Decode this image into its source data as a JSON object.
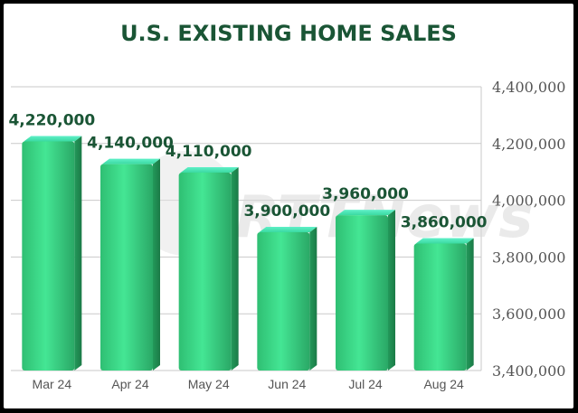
{
  "chart_data": {
    "type": "bar",
    "title": "U.S. EXISTING HOME SALES",
    "categories": [
      "Mar 24",
      "Apr 24",
      "May 24",
      "Jun 24",
      "Jul 24",
      "Aug 24"
    ],
    "values": [
      4220000,
      4140000,
      4110000,
      3900000,
      3960000,
      3860000
    ],
    "data_labels": [
      "4,220,000",
      "4,140,000",
      "4,110,000",
      "3,900,000",
      "3,960,000",
      "3,860,000"
    ],
    "y_ticks": [
      3400000,
      3600000,
      3800000,
      4000000,
      4200000,
      4400000
    ],
    "y_tick_labels": [
      "3,400,000",
      "3,600,000",
      "3,800,000",
      "4,000,000",
      "4,200,000",
      "4,400,000"
    ],
    "ylim": [
      3400000,
      4400000
    ],
    "xlabel": "",
    "ylabel": "",
    "grid": true,
    "y_axis_side": "right",
    "legend": "none",
    "bar_color": "#3ee08e",
    "label_color": "#1a5535",
    "watermark": "RTTNews"
  }
}
